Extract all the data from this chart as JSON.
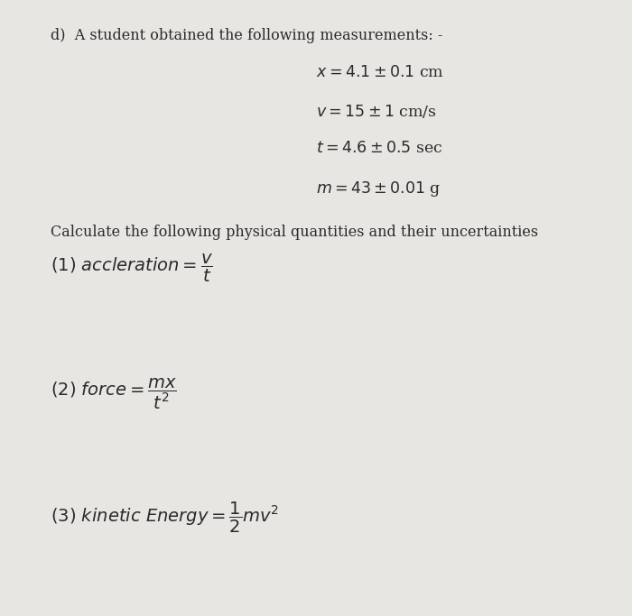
{
  "background_color": "#e8e6e2",
  "title_label": "d)  A student obtained the following measurements: -",
  "measurements": [
    "$x = 4.1 \\pm 0.1$ cm",
    "$v = 15 \\pm 1$ cm/s",
    "$t = 4.6 \\pm 0.5$ sec",
    "$m = 43 \\pm 0.01$ g"
  ],
  "calc_intro": "Calculate the following physical quantities and their uncertainties",
  "text_color": "#2a2a2a",
  "font_size_title": 11.5,
  "font_size_meas": 12.5,
  "font_size_eq": 14,
  "font_size_intro": 11.5
}
